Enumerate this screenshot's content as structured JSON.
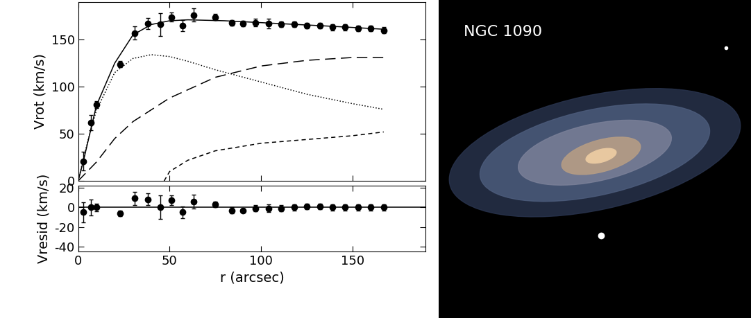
{
  "chart_data": [
    {
      "type": "line",
      "ylabel": "Vrot (km/s)",
      "xlim": [
        0,
        190
      ],
      "xticks": [
        0,
        50,
        100,
        150
      ],
      "ylim": [
        0,
        190
      ],
      "yticks": [
        0,
        50,
        100,
        150
      ],
      "tick_labels": "y",
      "series": [
        {
          "type": "scatter",
          "color": "#000000",
          "marker": "circle",
          "x": [
            3,
            7,
            10,
            23,
            31,
            38,
            45,
            51,
            57,
            63,
            75,
            84,
            90,
            97,
            104,
            111,
            118,
            125,
            132,
            139,
            146,
            153,
            160,
            167
          ],
          "values": [
            21,
            62,
            81,
            124,
            157,
            167,
            166,
            174,
            165,
            176,
            174,
            168,
            167,
            168,
            167,
            166,
            166,
            165,
            165,
            163,
            163,
            162,
            162,
            160
          ],
          "errors": [
            10,
            8,
            4,
            3,
            7,
            6,
            12,
            5,
            6,
            7,
            3,
            3,
            3,
            4,
            5,
            3,
            3,
            3,
            3,
            3,
            3,
            3,
            3,
            3
          ]
        },
        {
          "type": "line",
          "color": "#000000",
          "line_style": "solid",
          "x": [
            0,
            3,
            10,
            20,
            30,
            40,
            50,
            60,
            80,
            100,
            120,
            140,
            167
          ],
          "values": [
            0,
            22,
            80,
            125,
            155,
            166,
            170,
            171,
            170,
            168,
            166,
            164,
            161
          ]
        },
        {
          "type": "line",
          "color": "#000000",
          "line_style": "dotted",
          "x": [
            0,
            5,
            10,
            20,
            30,
            40,
            50,
            60,
            75,
            100,
            125,
            150,
            167
          ],
          "values": [
            0,
            40,
            75,
            115,
            130,
            134,
            132,
            127,
            118,
            105,
            92,
            82,
            76
          ]
        },
        {
          "type": "line",
          "color": "#000000",
          "line_style": "long_dash",
          "x": [
            0,
            10,
            20,
            30,
            50,
            75,
            100,
            125,
            150,
            167
          ],
          "values": [
            0,
            20,
            45,
            63,
            88,
            110,
            122,
            128,
            131,
            131
          ]
        },
        {
          "type": "line",
          "color": "#000000",
          "line_style": "short_dash",
          "x": [
            47,
            50,
            60,
            75,
            100,
            125,
            150,
            167
          ],
          "values": [
            0,
            10,
            22,
            32,
            40,
            44,
            48,
            52
          ]
        }
      ]
    },
    {
      "type": "scatter",
      "xlabel": "r (arcsec)",
      "ylabel": "Vresid (km/s)",
      "xlim": [
        0,
        190
      ],
      "xticks": [
        0,
        50,
        100,
        150
      ],
      "ylim": [
        -45,
        22
      ],
      "yticks": [
        -40,
        -20,
        0,
        20
      ],
      "series": [
        {
          "type": "scatter",
          "color": "#000000",
          "marker": "circle",
          "x": [
            3,
            7,
            10,
            23,
            31,
            38,
            45,
            51,
            57,
            63,
            75,
            84,
            90,
            97,
            104,
            111,
            118,
            125,
            132,
            139,
            146,
            153,
            160,
            167
          ],
          "values": [
            -5,
            0,
            0,
            -6,
            9,
            8,
            0,
            7,
            -5,
            6,
            3,
            -3,
            -3,
            -1,
            -1,
            -1,
            0,
            1,
            1,
            0,
            0,
            0,
            0,
            0
          ],
          "errors": [
            10,
            8,
            4,
            3,
            7,
            6,
            12,
            5,
            6,
            7,
            3,
            3,
            2,
            3,
            4,
            3,
            3,
            3,
            3,
            3,
            3,
            3,
            3,
            3
          ]
        },
        {
          "type": "line",
          "color": "#000000",
          "line_style": "solid",
          "x": [
            0,
            190
          ],
          "values": [
            0,
            0
          ]
        }
      ]
    }
  ],
  "image": {
    "label": "NGC 1090"
  }
}
